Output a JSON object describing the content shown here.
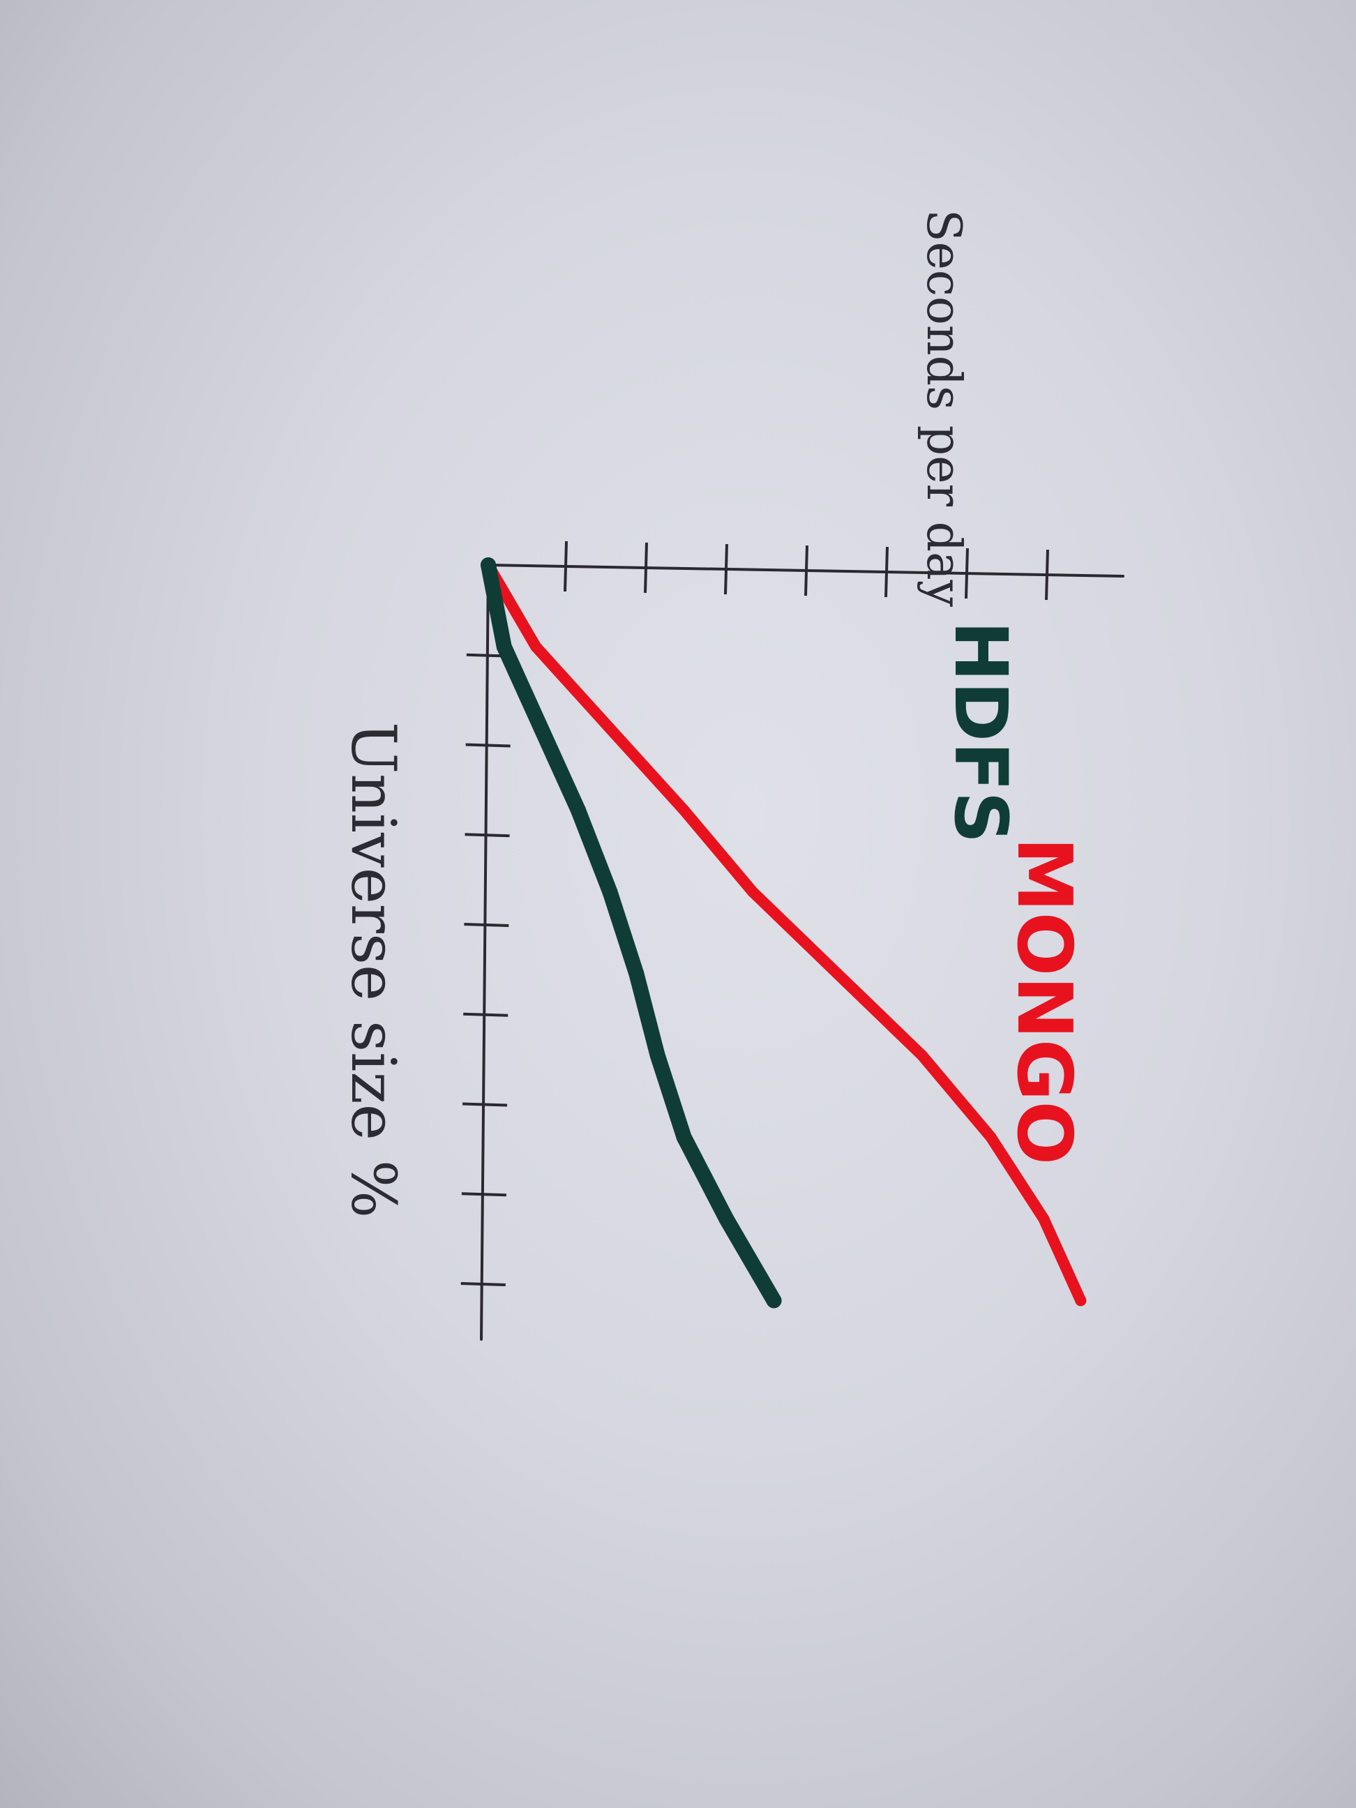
{
  "chart_data": {
    "type": "line",
    "orientation": "rotated 90 degrees clockwise (paper photographed sideways)",
    "xlabel": "Universe size %",
    "ylabel": "Seconds per day",
    "x_ticks": 8,
    "y_ticks": 7,
    "ticks_labeled": false,
    "xlim": [
      0,
      9
    ],
    "ylim": [
      0,
      6
    ],
    "grid": false,
    "legend_placement": "upper-left, next to line ends",
    "series": [
      {
        "name": "MONGO",
        "color": "#e8121e",
        "x": [
          0,
          1,
          2,
          3,
          4,
          5,
          6,
          7,
          8,
          9
        ],
        "y": [
          0,
          0.45,
          1.15,
          1.85,
          2.5,
          3.3,
          4.1,
          4.75,
          5.25,
          5.6
        ]
      },
      {
        "name": "HDFS",
        "color": "#0f3d35",
        "x": [
          0,
          1,
          2,
          3,
          4,
          5,
          6,
          7,
          8,
          9
        ],
        "y": [
          0,
          0.15,
          0.5,
          0.85,
          1.15,
          1.4,
          1.6,
          1.85,
          2.25,
          2.7
        ]
      }
    ]
  }
}
